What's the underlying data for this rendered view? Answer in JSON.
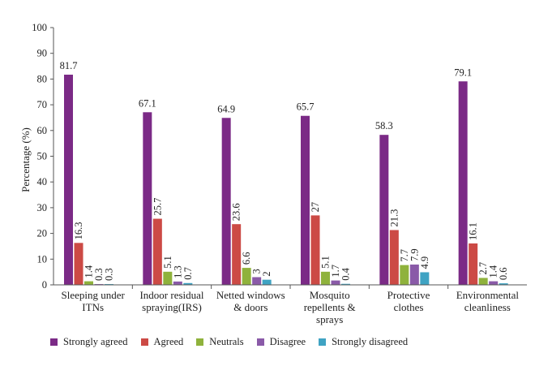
{
  "chart_data": {
    "type": "bar",
    "title": "",
    "xlabel": "",
    "ylabel": "Percentage (%)",
    "ylim": [
      0,
      100
    ],
    "yticks": [
      0,
      10,
      20,
      30,
      40,
      50,
      60,
      70,
      80,
      90,
      100
    ],
    "grid": false,
    "legend_position": "bottom",
    "categories": [
      [
        "Sleeping under",
        "ITNs"
      ],
      [
        "Indoor residual",
        "spraying(IRS)"
      ],
      [
        "Netted windows",
        "& doors"
      ],
      [
        "Mosquito",
        "repellents &",
        "sprays"
      ],
      [
        "Protective",
        "clothes"
      ],
      [
        "Environmental",
        "cleanliness"
      ]
    ],
    "series": [
      {
        "name": "Strongly agreed",
        "color": "#7b2a86",
        "values": [
          81.7,
          67.1,
          64.9,
          65.7,
          58.3,
          79.1
        ],
        "labels": [
          "81.7",
          "67.1",
          "64.9",
          "65.7",
          "58.3",
          "79.1"
        ]
      },
      {
        "name": "Agreed",
        "color": "#cc4a45",
        "values": [
          16.3,
          25.7,
          23.6,
          27,
          21.3,
          16.1
        ],
        "labels": [
          "16.3",
          "25.7",
          "23.6",
          "27",
          "21.3",
          "16.1"
        ]
      },
      {
        "name": "Neutrals",
        "color": "#8fb23c",
        "values": [
          1.4,
          5.1,
          6.6,
          5.1,
          7.7,
          2.7
        ],
        "labels": [
          "1.4",
          "5.1",
          "6.6",
          "5.1",
          "7.7",
          "2.7"
        ]
      },
      {
        "name": "Disagree",
        "color": "#8a5aa8",
        "values": [
          0.3,
          1.3,
          3,
          1.7,
          7.9,
          1.4
        ],
        "labels": [
          "0.3",
          "1.3",
          "3",
          "1.7",
          "7.9",
          "1.4"
        ]
      },
      {
        "name": "Strongly disagreed",
        "color": "#3fa3c3",
        "values": [
          0.3,
          0.7,
          2,
          0.4,
          4.9,
          0.6
        ],
        "labels": [
          "0.3",
          "0.7",
          "2",
          "0.4",
          "4.9",
          "0.6"
        ]
      }
    ]
  }
}
